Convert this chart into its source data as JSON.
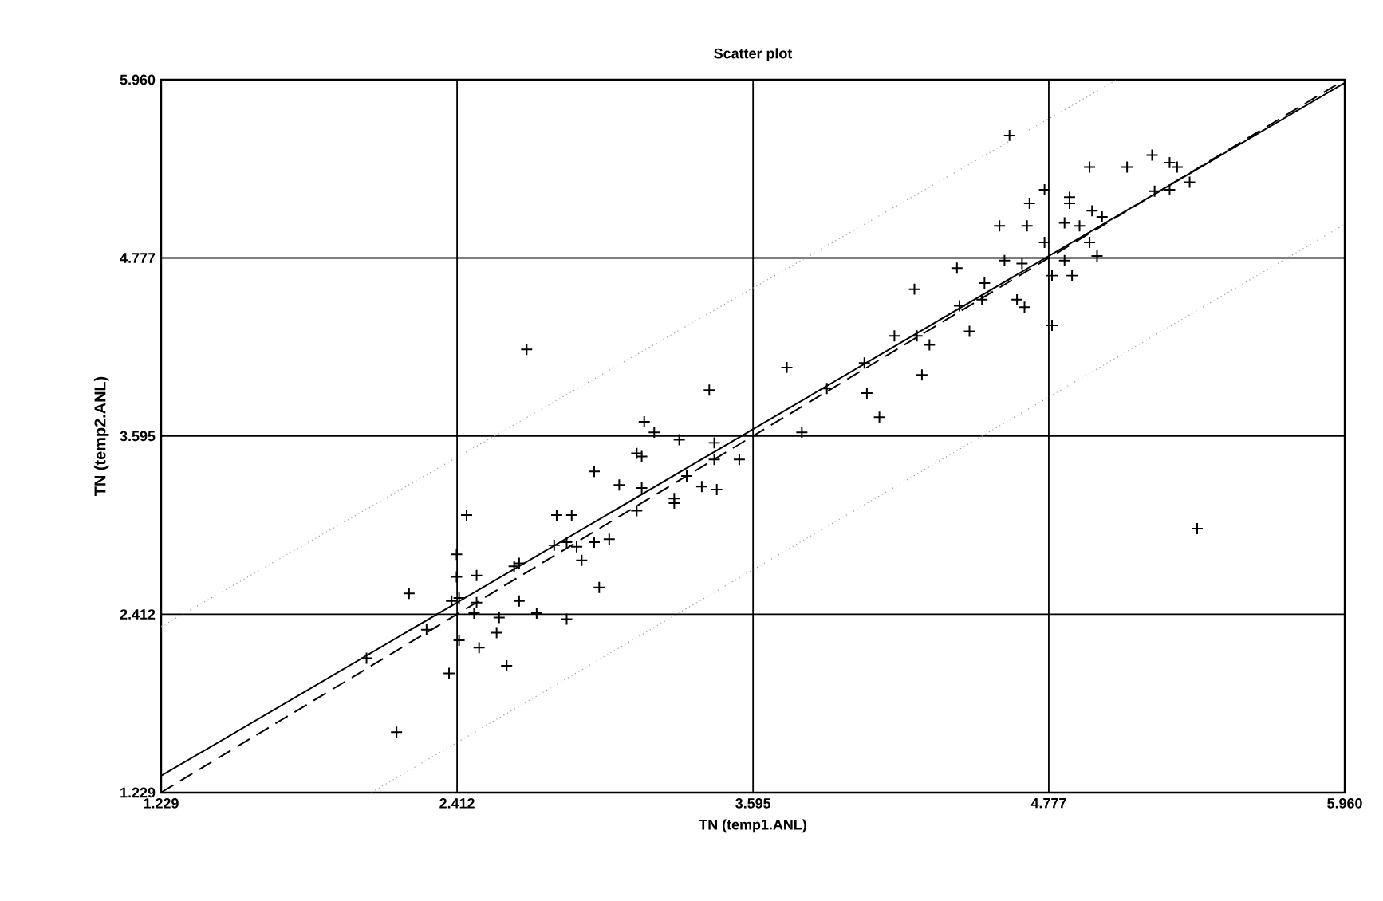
{
  "chart_data": {
    "type": "scatter",
    "title": "Scatter plot",
    "xlabel": "TN (temp1.ANL)",
    "ylabel": "TN (temp2.ANL)",
    "xlim": [
      1.229,
      5.96
    ],
    "ylim": [
      1.229,
      5.96
    ],
    "xticks": [
      1.229,
      2.412,
      3.595,
      4.777,
      {
        "value": 5.96,
        "label": "5.960"
      }
    ],
    "yticks": [
      1.229,
      2.412,
      3.595,
      4.777,
      {
        "value": 5.96,
        "label": "5.960"
      }
    ],
    "grid": true,
    "marker": "cross",
    "series": [
      {
        "color": "#000000",
        "x": [
          2.17,
          2.05,
          2.29,
          2.22,
          2.38,
          2.42,
          2.5,
          2.57,
          2.61,
          2.66,
          2.73,
          2.85,
          2.48,
          2.42,
          2.45,
          2.41,
          2.41,
          2.49,
          2.39,
          2.49,
          2.58,
          2.64,
          2.66,
          2.81,
          2.87,
          2.8,
          2.85,
          2.89,
          2.91,
          2.96,
          3.02,
          2.98,
          2.96,
          3.06,
          3.13,
          2.69,
          3.16,
          3.2,
          3.15,
          3.3,
          3.44,
          3.44,
          3.54,
          3.42,
          3.15,
          3.33,
          3.39,
          3.45,
          3.28,
          3.28,
          3.13,
          3.79,
          3.73,
          3.89,
          4.04,
          4.05,
          4.1,
          4.16,
          4.24,
          4.25,
          4.27,
          4.3,
          4.46,
          4.41,
          4.42,
          4.51,
          4.52,
          4.65,
          4.68,
          4.6,
          4.67,
          4.79,
          4.79,
          4.84,
          4.87,
          4.76,
          4.76,
          4.58,
          4.69,
          4.7,
          4.84,
          4.86,
          4.86,
          4.9,
          4.95,
          4.99,
          4.94,
          4.97,
          4.94,
          5.09,
          4.62,
          5.19,
          5.26,
          5.29,
          5.2,
          5.26,
          5.34,
          5.37
        ],
        "values": [
          1.63,
          2.12,
          2.31,
          2.55,
          2.02,
          2.24,
          2.19,
          2.29,
          2.07,
          2.5,
          2.42,
          2.38,
          2.42,
          2.52,
          3.07,
          2.81,
          2.66,
          2.67,
          2.5,
          2.49,
          2.39,
          2.73,
          2.75,
          3.07,
          3.07,
          2.87,
          2.89,
          2.86,
          2.77,
          2.89,
          2.91,
          2.59,
          3.36,
          3.27,
          3.48,
          4.17,
          3.69,
          3.62,
          3.46,
          3.57,
          3.55,
          3.44,
          3.44,
          3.9,
          3.25,
          3.33,
          3.26,
          3.24,
          3.18,
          3.15,
          3.1,
          3.62,
          4.05,
          3.91,
          4.08,
          3.88,
          3.72,
          4.26,
          4.57,
          4.26,
          4.0,
          4.2,
          4.29,
          4.71,
          4.46,
          4.5,
          4.61,
          4.5,
          4.45,
          4.76,
          4.74,
          4.33,
          4.66,
          4.76,
          4.66,
          4.88,
          5.23,
          4.99,
          4.99,
          5.14,
          5.01,
          5.18,
          5.14,
          4.99,
          5.09,
          5.05,
          4.88,
          4.79,
          5.38,
          5.38,
          5.59,
          5.46,
          5.41,
          5.38,
          5.22,
          5.23,
          5.28,
          2.98
        ]
      },
      {
        "type": "line",
        "color": "#000000",
        "marker": "none",
        "line_style": "solid",
        "x": [
          1.229,
          5.96
        ],
        "values": [
          1.34,
          5.94
        ]
      },
      {
        "type": "line",
        "color": "#000000",
        "marker": "none",
        "line_style": "dashed",
        "x": [
          1.229,
          5.96
        ],
        "values": [
          1.23,
          5.96
        ]
      },
      {
        "type": "line",
        "color": "#999999",
        "marker": "none",
        "line_style": "dotted",
        "x": [
          1.229,
          5.05
        ],
        "values": [
          2.33,
          5.96
        ]
      },
      {
        "type": "line",
        "color": "#999999",
        "marker": "none",
        "line_style": "dotted",
        "x": [
          2.07,
          5.96
        ],
        "values": [
          1.23,
          5.0
        ]
      }
    ]
  }
}
